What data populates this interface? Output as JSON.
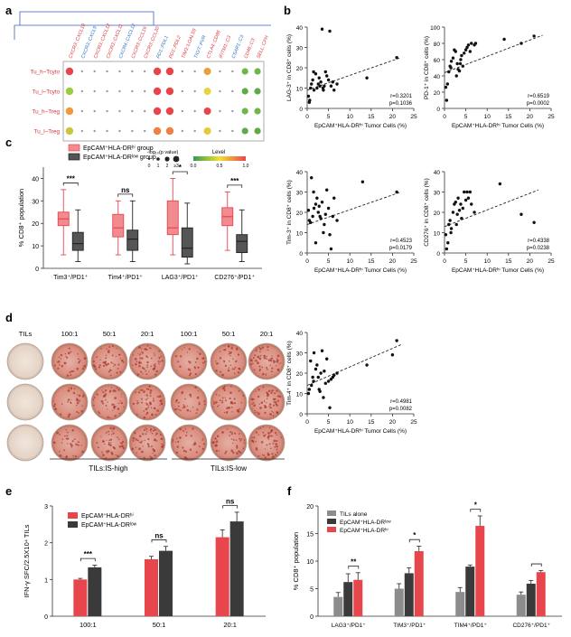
{
  "panels": {
    "a": {
      "letter": "a",
      "pairs": [
        "CXCR3::CXCL10",
        "CXCR3::CXCL9",
        "CXCR3::CXCL12",
        "CXCR3::CXCL11",
        "CXCR4::CXCL12",
        "CXCR3::CCL19",
        "CXCR3::CCL20",
        "PD1::PDL1",
        "PD1::PDL2",
        "TIM3::LGALS9",
        "TIGIT::PVR",
        "CTLA4::CD86",
        "IFITM1::C3",
        "CSAR1::C3",
        "CD46::C3",
        "SELL::CFH"
      ],
      "rows": [
        "Tu_h~Tcyto",
        "Tu_l~Tcyto",
        "Tu_h~Treg",
        "Tu_l~Treg"
      ],
      "size_legend_title": "-log₁₀(p value)",
      "size_legend_ticks": [
        "0",
        "1",
        "2",
        "≥3"
      ],
      "color_legend_title": "Level",
      "color_legend_ticks": [
        "0.0",
        "0.5",
        "1.0"
      ],
      "colors": {
        "low": "#2e9e4f",
        "mid": "#f2e030",
        "high": "#e8454b"
      }
    },
    "c": {
      "letter": "c",
      "legend": [
        "EpCAM⁺HLA-DRʰⁱ group",
        "EpCAM⁺HLA-DRˡᵒʷ group"
      ],
      "significance": [
        "***",
        "ns",
        "*",
        "***"
      ]
    },
    "d": {
      "letter": "d",
      "col_labels": [
        "TILs",
        "100:1",
        "50:1",
        "20:1",
        "100:1",
        "50:1",
        "20:1"
      ],
      "group_labels": [
        "TILs:IS-high",
        "TILs:IS-low"
      ]
    },
    "e": {
      "letter": "e",
      "legend": [
        "EpCAM⁺HLA-DRʰⁱ",
        "EpCAM⁺HLA-DRˡᵒʷ"
      ],
      "significance": [
        "***",
        "ns",
        "ns"
      ]
    },
    "f": {
      "letter": "f",
      "legend": [
        "TILs alone",
        "EpCAM⁺HLA-DRˡᵒʷ",
        "EpCAM⁺HLA-DRʰⁱ"
      ],
      "significance": [
        "**",
        "*",
        "*"
      ]
    },
    "b": {
      "letter": "b"
    }
  },
  "colors": {
    "red": "#e8464d",
    "dark": "#3a3a3a",
    "grey": "#8c8c8c",
    "box_red": "#f28b8f",
    "box_dark": "#555555"
  },
  "chart_data": [
    {
      "id": "c",
      "type": "box",
      "categories": [
        "Tim3⁺/PD1⁺",
        "Tim4⁺/PD1⁺",
        "LAG3⁺/PD1⁺",
        "CD276⁺/PD1⁺"
      ],
      "ylabel": "% CD8⁺ population",
      "ylim": [
        0,
        45
      ],
      "yticks": [
        0,
        10,
        20,
        30,
        40
      ],
      "series": [
        {
          "name": "EpCAM⁺HLA-DRʰⁱ group",
          "boxes": [
            [
              6,
              19,
              22,
              25,
              35
            ],
            [
              6,
              14,
              18,
              24,
              30
            ],
            [
              6,
              15,
              18,
              30,
              40
            ],
            [
              8,
              19,
              23,
              27,
              34
            ]
          ]
        },
        {
          "name": "EpCAM⁺HLA-DRˡᵒʷ group",
          "boxes": [
            [
              3,
              8,
              11,
              16,
              26
            ],
            [
              3,
              8,
              13,
              17,
              30
            ],
            [
              2,
              5,
              9,
              18,
              29
            ],
            [
              3,
              7,
              12,
              15,
              26
            ]
          ]
        }
      ]
    },
    {
      "id": "b1",
      "type": "scatter",
      "ylabel": "LAG-3⁺ in CD8⁺ cells (%)",
      "xlabel": "EpCAM⁺HLA-DRʰⁱ Tumor Cells (%)",
      "xlim": [
        0,
        25
      ],
      "ylim": [
        0,
        40
      ],
      "xticks": [
        0,
        5,
        10,
        15,
        20,
        25
      ],
      "yticks": [
        0,
        10,
        20,
        30,
        40
      ],
      "stats": [
        "r=0.3201",
        "p=0.1036"
      ],
      "trend": [
        [
          0,
          9
        ],
        [
          22,
          25
        ]
      ],
      "points": [
        [
          0.3,
          6
        ],
        [
          0.5,
          3
        ],
        [
          0.8,
          10
        ],
        [
          1,
          12
        ],
        [
          1.3,
          14
        ],
        [
          1.6,
          9
        ],
        [
          2,
          17
        ],
        [
          2.3,
          10
        ],
        [
          2.6,
          12
        ],
        [
          3,
          11
        ],
        [
          3.2,
          13
        ],
        [
          3.5,
          39
        ],
        [
          3.8,
          9
        ],
        [
          4,
          11
        ],
        [
          4.3,
          18
        ],
        [
          4.6,
          16
        ],
        [
          5,
          14
        ],
        [
          5.3,
          38
        ],
        [
          5.6,
          11
        ],
        [
          6,
          13
        ],
        [
          6.3,
          9
        ],
        [
          7,
          12
        ],
        [
          1.5,
          18
        ],
        [
          2.8,
          15
        ],
        [
          3.7,
          10
        ],
        [
          14,
          15
        ],
        [
          21,
          25
        ],
        [
          0.6,
          4
        ]
      ]
    },
    {
      "id": "b2",
      "type": "scatter",
      "ylabel": "PD-1⁺ in CD8⁺ cells (%)",
      "xlabel": "EpCAM⁺HLA-DRʰⁱ Tumor Cells (%)",
      "xlim": [
        0,
        25
      ],
      "ylim": [
        0,
        100
      ],
      "xticks": [
        0,
        5,
        10,
        15,
        20,
        25
      ],
      "yticks": [
        0,
        20,
        40,
        60,
        80,
        100
      ],
      "stats": [
        "r=0.6519",
        "p=0.0002"
      ],
      "trend": [
        [
          0,
          44
        ],
        [
          23,
          90
        ]
      ],
      "points": [
        [
          0.3,
          26
        ],
        [
          0.5,
          10
        ],
        [
          0.7,
          30
        ],
        [
          1,
          45
        ],
        [
          1.3,
          52
        ],
        [
          1.6,
          58
        ],
        [
          2,
          62
        ],
        [
          2.3,
          72
        ],
        [
          2.6,
          70
        ],
        [
          3,
          55
        ],
        [
          3.2,
          48
        ],
        [
          3.5,
          46
        ],
        [
          3.8,
          60
        ],
        [
          4,
          65
        ],
        [
          4.3,
          52
        ],
        [
          4.6,
          68
        ],
        [
          5,
          72
        ],
        [
          5.3,
          75
        ],
        [
          5.6,
          78
        ],
        [
          6,
          70
        ],
        [
          6.3,
          80
        ],
        [
          7,
          78
        ],
        [
          7.3,
          80
        ],
        [
          1.5,
          50
        ],
        [
          2.8,
          40
        ],
        [
          3.7,
          55
        ],
        [
          14,
          85
        ],
        [
          21,
          89
        ],
        [
          18,
          80
        ]
      ]
    },
    {
      "id": "b3",
      "type": "scatter",
      "ylabel": "Tim-3⁺ in CD8⁺ cells (%)",
      "xlabel": "EpCAM⁺HLA-DRʰⁱ Tumor Cells (%)",
      "xlim": [
        0,
        25
      ],
      "ylim": [
        0,
        40
      ],
      "xticks": [
        0,
        5,
        10,
        15,
        20,
        25
      ],
      "yticks": [
        0,
        10,
        20,
        30,
        40
      ],
      "stats": [
        "r=0.4523",
        "p=0.0179"
      ],
      "trend": [
        [
          0,
          14
        ],
        [
          22,
          30
        ]
      ],
      "points": [
        [
          0.3,
          21
        ],
        [
          0.5,
          16
        ],
        [
          0.8,
          15
        ],
        [
          1,
          37
        ],
        [
          1.3,
          18
        ],
        [
          1.6,
          22
        ],
        [
          2,
          24
        ],
        [
          2.3,
          27
        ],
        [
          2.6,
          20
        ],
        [
          3,
          18
        ],
        [
          3.2,
          17
        ],
        [
          3.5,
          25
        ],
        [
          3.8,
          10
        ],
        [
          4,
          14
        ],
        [
          4.3,
          19
        ],
        [
          4.6,
          31
        ],
        [
          5,
          22
        ],
        [
          5.3,
          9
        ],
        [
          5.6,
          2
        ],
        [
          6,
          18
        ],
        [
          6.3,
          27
        ],
        [
          7,
          16
        ],
        [
          1.5,
          30
        ],
        [
          2.8,
          23
        ],
        [
          13,
          35
        ],
        [
          21,
          30
        ],
        [
          2,
          5
        ]
      ]
    },
    {
      "id": "b4",
      "type": "scatter",
      "ylabel": "CD276⁺ in CD8⁺ cells (%)",
      "xlabel": "EpCAM⁺HLA-DRʰⁱ Tumor Cells (%)",
      "xlim": [
        0,
        25
      ],
      "ylim": [
        0,
        40
      ],
      "xticks": [
        0,
        5,
        10,
        15,
        20,
        25
      ],
      "yticks": [
        0,
        10,
        20,
        30,
        40
      ],
      "stats": [
        "r=0.4338",
        "p=0.0238"
      ],
      "trend": [
        [
          0,
          13
        ],
        [
          22,
          31
        ]
      ],
      "points": [
        [
          0.3,
          9
        ],
        [
          0.5,
          2
        ],
        [
          0.8,
          5
        ],
        [
          1,
          14
        ],
        [
          1.3,
          16
        ],
        [
          1.6,
          12
        ],
        [
          2,
          20
        ],
        [
          2.3,
          24
        ],
        [
          2.6,
          25
        ],
        [
          3,
          19
        ],
        [
          3.2,
          27
        ],
        [
          3.5,
          21
        ],
        [
          3.8,
          24
        ],
        [
          4,
          17
        ],
        [
          4.3,
          22
        ],
        [
          4.6,
          30
        ],
        [
          5,
          26
        ],
        [
          5.3,
          30
        ],
        [
          5.6,
          27
        ],
        [
          6,
          30
        ],
        [
          6.3,
          24
        ],
        [
          7,
          20
        ],
        [
          1.5,
          10
        ],
        [
          2.8,
          14
        ],
        [
          13,
          34
        ],
        [
          18,
          19
        ],
        [
          21,
          15
        ]
      ]
    },
    {
      "id": "b5",
      "type": "scatter",
      "ylabel": "Tim-4⁺ in CD8⁺ cells (%)",
      "xlabel": "EpCAM⁺HLA-DRʰⁱ Tumor Cells (%)",
      "xlim": [
        0,
        25
      ],
      "ylim": [
        0,
        40
      ],
      "xticks": [
        0,
        5,
        10,
        15,
        20,
        25
      ],
      "yticks": [
        0,
        10,
        20,
        30,
        40
      ],
      "stats": [
        "r=0.4981",
        "p=0.0082"
      ],
      "trend": [
        [
          0,
          14
        ],
        [
          22,
          34
        ]
      ],
      "points": [
        [
          0.3,
          10
        ],
        [
          0.5,
          12
        ],
        [
          0.8,
          26
        ],
        [
          1,
          14
        ],
        [
          1.3,
          18
        ],
        [
          1.6,
          30
        ],
        [
          2,
          22
        ],
        [
          2.3,
          24
        ],
        [
          2.6,
          18
        ],
        [
          3,
          11
        ],
        [
          3.2,
          20
        ],
        [
          3.5,
          31
        ],
        [
          3.8,
          8
        ],
        [
          4,
          21
        ],
        [
          4.3,
          15
        ],
        [
          4.6,
          27
        ],
        [
          5,
          16
        ],
        [
          5.3,
          3
        ],
        [
          5.6,
          17
        ],
        [
          6,
          18
        ],
        [
          6.3,
          19
        ],
        [
          7,
          20
        ],
        [
          1.5,
          16
        ],
        [
          2.8,
          12
        ],
        [
          14,
          24
        ],
        [
          21,
          36
        ],
        [
          20,
          29
        ]
      ]
    },
    {
      "id": "e",
      "type": "bar",
      "categories": [
        "100:1",
        "50:1",
        "20:1"
      ],
      "ylabel": "IFN-γ SFC/2.5X10⁴ TILs",
      "ylim": [
        0,
        3
      ],
      "yticks": [
        0,
        1,
        2,
        3
      ],
      "series": [
        {
          "name": "EpCAM⁺HLA-DRʰⁱ",
          "values": [
            1.0,
            1.55,
            2.15
          ],
          "errors": [
            0.03,
            0.08,
            0.2
          ]
        },
        {
          "name": "EpCAM⁺HLA-DRˡᵒʷ",
          "values": [
            1.33,
            1.78,
            2.58
          ],
          "errors": [
            0.06,
            0.12,
            0.25
          ]
        }
      ]
    },
    {
      "id": "f",
      "type": "bar",
      "categories": [
        "LAG3⁺/PD1⁺",
        "TIM3⁺/PD1⁺",
        "TIM4⁺/PD1⁺",
        "CD276⁺/PD1⁺"
      ],
      "ylabel": "% CD8⁺ population",
      "ylim": [
        0,
        20
      ],
      "yticks": [
        0,
        5,
        10,
        15,
        20
      ],
      "series": [
        {
          "name": "TILs alone",
          "values": [
            3.5,
            5.0,
            4.4,
            3.9
          ],
          "errors": [
            0.8,
            0.9,
            0.8,
            0.5
          ]
        },
        {
          "name": "EpCAM⁺HLA-DRˡᵒʷ",
          "values": [
            6.2,
            7.8,
            9.0,
            5.9
          ],
          "errors": [
            1.5,
            1.0,
            0.3,
            0.6
          ]
        },
        {
          "name": "EpCAM⁺HLA-DRʰⁱ",
          "values": [
            6.6,
            11.8,
            16.4,
            8.0
          ],
          "errors": [
            1.3,
            0.9,
            1.8,
            0.3
          ]
        }
      ]
    }
  ]
}
